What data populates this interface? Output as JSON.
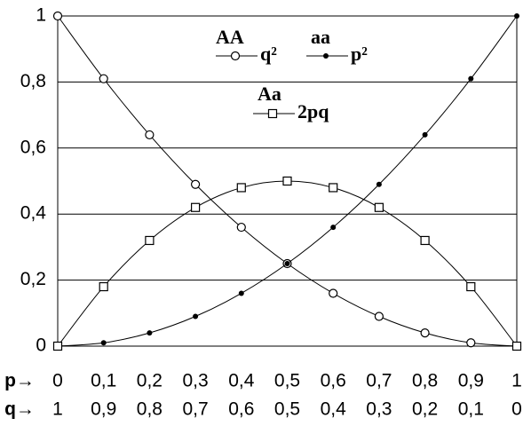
{
  "chart_data": {
    "type": "line",
    "x": [
      0,
      0.1,
      0.2,
      0.3,
      0.4,
      0.5,
      0.6,
      0.7,
      0.8,
      0.9,
      1
    ],
    "xlabel": "p→",
    "x2label": "q→",
    "series": [
      {
        "name": "q²",
        "label": "AA",
        "marker": "circle",
        "color": "#000000",
        "values": [
          1,
          0.81,
          0.64,
          0.49,
          0.36,
          0.25,
          0.16,
          0.09,
          0.04,
          0.01,
          0
        ]
      },
      {
        "name": "p²",
        "label": "aa",
        "marker": "dot",
        "color": "#000000",
        "values": [
          0,
          0.01,
          0.04,
          0.09,
          0.16,
          0.25,
          0.36,
          0.49,
          0.64,
          0.81,
          1
        ]
      },
      {
        "name": "2pq",
        "label": "Aa",
        "marker": "square",
        "color": "#000000",
        "values": [
          0,
          0.18,
          0.32,
          0.42,
          0.48,
          0.5,
          0.48,
          0.42,
          0.32,
          0.18,
          0
        ]
      }
    ],
    "xlim": [
      0,
      1
    ],
    "xticks": [
      0,
      {
        "value": 0.1,
        "label": "0,1"
      },
      {
        "value": 0.2,
        "label": "0,2"
      },
      {
        "value": 0.3,
        "label": "0,3"
      },
      {
        "value": 0.4,
        "label": "0,4"
      },
      {
        "value": 0.5,
        "label": "0,5"
      },
      {
        "value": 0.6,
        "label": "0,6"
      },
      {
        "value": 0.7,
        "label": "0,7"
      },
      {
        "value": 0.8,
        "label": "0,8"
      },
      {
        "value": 0.9,
        "label": "0,9"
      },
      1
    ],
    "x2lim": [
      1,
      0
    ],
    "x2ticks": [
      1,
      {
        "value": 0.9,
        "label": "0,9"
      },
      {
        "value": 0.8,
        "label": "0,8"
      },
      {
        "value": 0.7,
        "label": "0,7"
      },
      {
        "value": 0.6,
        "label": "0,6"
      },
      {
        "value": 0.5,
        "label": "0,5"
      },
      {
        "value": 0.4,
        "label": "0,4"
      },
      {
        "value": 0.3,
        "label": "0,3"
      },
      {
        "value": 0.2,
        "label": "0,2"
      },
      {
        "value": 0.1,
        "label": "0,1"
      },
      0
    ],
    "ylim": [
      0,
      1
    ],
    "yticks": [
      0,
      {
        "value": 0.2,
        "label": "0,2"
      },
      {
        "value": 0.4,
        "label": "0,4"
      },
      {
        "value": 0.6,
        "label": "0,6"
      },
      {
        "value": 0.8,
        "label": "0,8"
      },
      1
    ],
    "grid": true
  }
}
